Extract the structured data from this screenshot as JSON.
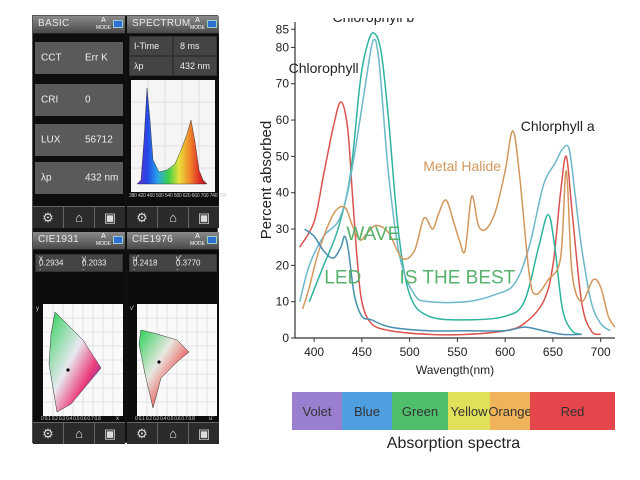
{
  "meter": {
    "basic": {
      "title": "BASIC",
      "mode": "A",
      "mode_sub": "MODE",
      "rows": [
        {
          "label": "CCT",
          "value": "Err K"
        },
        {
          "label": "CRI",
          "value": "0"
        },
        {
          "label": "LUX",
          "value": "56712"
        },
        {
          "label": "λp",
          "value": "432 nm"
        }
      ]
    },
    "spectrum": {
      "title": "SPECTRUM",
      "mode": "A",
      "mode_sub": "MODE",
      "itime_label": "I-Time",
      "itime_value": "8 ms",
      "lp_label": "λp",
      "lp_value": "432 nm",
      "ticks": [
        "380",
        "420",
        "460",
        "500",
        "540",
        "580",
        "620",
        "660",
        "700",
        "740",
        "780"
      ]
    },
    "cie1931": {
      "title": "CIE1931",
      "mode": "A",
      "mode_sub": "MODE",
      "x_label": "x :",
      "x_value": "0.2934",
      "y_label": "y :",
      "y_value": "0.2033",
      "axis_y": "y",
      "axis_x": "x",
      "ticks": "0 0.1 0.2 0.3 0.4 0.5 0.6 0.7 0.8"
    },
    "cie1976": {
      "title": "CIE1976",
      "mode": "A",
      "mode_sub": "MODE",
      "u_label": "u' :",
      "u_value": "0.2418",
      "v_label": "v' :",
      "v_value": "0.3770",
      "axis_y": "v'",
      "axis_x": "u'",
      "ticks": "0 0.1 0.2 0.3 0.4 0.5 0.6 0.7 0.8"
    },
    "icons": [
      "gear-icon",
      "home-icon",
      "save-icon"
    ]
  },
  "chart_data": {
    "type": "line",
    "ylabel": "Percent absorbed",
    "xlabel": "Wavength(nm)",
    "xlim": [
      380,
      715
    ],
    "ylim": [
      0,
      87
    ],
    "xticks": [
      400,
      450,
      500,
      550,
      600,
      650,
      700
    ],
    "yticks": [
      0,
      10,
      20,
      30,
      40,
      50,
      60,
      70,
      80,
      85
    ],
    "grid": false,
    "series": [
      {
        "name": "Chlorophyll",
        "color": "#d9534f",
        "points": [
          [
            385,
            25
          ],
          [
            400,
            32
          ],
          [
            410,
            45
          ],
          [
            420,
            58
          ],
          [
            428,
            65
          ],
          [
            435,
            58
          ],
          [
            440,
            40
          ],
          [
            445,
            22
          ],
          [
            450,
            10
          ],
          [
            460,
            4
          ],
          [
            480,
            2
          ],
          [
            520,
            1
          ],
          [
            560,
            1
          ],
          [
            600,
            2
          ],
          [
            620,
            4
          ],
          [
            640,
            10
          ],
          [
            650,
            20
          ],
          [
            658,
            40
          ],
          [
            664,
            50
          ],
          [
            670,
            35
          ],
          [
            680,
            10
          ],
          [
            690,
            2
          ],
          [
            700,
            1
          ]
        ]
      },
      {
        "name": "Chlorophyll b",
        "color": "#2fb39f",
        "points": [
          [
            395,
            10
          ],
          [
            410,
            20
          ],
          [
            425,
            30
          ],
          [
            438,
            45
          ],
          [
            448,
            70
          ],
          [
            455,
            80
          ],
          [
            462,
            84
          ],
          [
            470,
            79
          ],
          [
            478,
            60
          ],
          [
            488,
            30
          ],
          [
            500,
            12
          ],
          [
            520,
            6
          ],
          [
            560,
            5
          ],
          [
            600,
            6
          ],
          [
            620,
            10
          ],
          [
            635,
            25
          ],
          [
            645,
            34
          ],
          [
            652,
            25
          ],
          [
            660,
            8
          ],
          [
            670,
            2
          ],
          [
            680,
            1
          ]
        ]
      },
      {
        "name": "Chlorophyll a",
        "color": "#6db7c9",
        "points": [
          [
            385,
            10
          ],
          [
            395,
            20
          ],
          [
            410,
            28
          ],
          [
            425,
            32
          ],
          [
            435,
            40
          ],
          [
            445,
            55
          ],
          [
            455,
            72
          ],
          [
            462,
            82
          ],
          [
            468,
            76
          ],
          [
            478,
            45
          ],
          [
            490,
            22
          ],
          [
            505,
            12
          ],
          [
            520,
            10
          ],
          [
            560,
            10
          ],
          [
            590,
            12
          ],
          [
            610,
            15
          ],
          [
            625,
            25
          ],
          [
            640,
            42
          ],
          [
            652,
            48
          ],
          [
            660,
            52
          ],
          [
            667,
            52
          ],
          [
            673,
            40
          ],
          [
            680,
            25
          ],
          [
            690,
            10
          ],
          [
            700,
            4
          ],
          [
            710,
            2
          ]
        ]
      },
      {
        "name": "Metal Halide",
        "color": "#d2975c",
        "points": [
          [
            388,
            8
          ],
          [
            395,
            14
          ],
          [
            405,
            24
          ],
          [
            420,
            34
          ],
          [
            432,
            36
          ],
          [
            440,
            31
          ],
          [
            448,
            27
          ],
          [
            456,
            29
          ],
          [
            465,
            31
          ],
          [
            478,
            29
          ],
          [
            492,
            22
          ],
          [
            505,
            24
          ],
          [
            515,
            33
          ],
          [
            524,
            30
          ],
          [
            530,
            34
          ],
          [
            538,
            38
          ],
          [
            546,
            32
          ],
          [
            552,
            27
          ],
          [
            558,
            24
          ],
          [
            565,
            39
          ],
          [
            572,
            31
          ],
          [
            580,
            30
          ],
          [
            590,
            35
          ],
          [
            600,
            46
          ],
          [
            608,
            57
          ],
          [
            615,
            45
          ],
          [
            625,
            18
          ],
          [
            632,
            12
          ],
          [
            645,
            16
          ],
          [
            658,
            22
          ],
          [
            664,
            46
          ],
          [
            670,
            18
          ],
          [
            680,
            10
          ],
          [
            692,
            16
          ],
          [
            700,
            14
          ],
          [
            708,
            6
          ],
          [
            715,
            3
          ]
        ]
      },
      {
        "name": "LED",
        "color": "#4a8fb0",
        "points": [
          [
            390,
            30
          ],
          [
            400,
            28
          ],
          [
            410,
            24
          ],
          [
            420,
            22
          ],
          [
            428,
            25
          ],
          [
            432,
            28
          ],
          [
            436,
            24
          ],
          [
            442,
            12
          ],
          [
            450,
            6
          ],
          [
            460,
            5
          ],
          [
            480,
            3
          ],
          [
            520,
            2
          ],
          [
            560,
            2
          ],
          [
            600,
            2
          ],
          [
            620,
            3
          ],
          [
            640,
            2
          ],
          [
            660,
            1
          ],
          [
            680,
            1
          ]
        ]
      }
    ],
    "curve_labels": [
      {
        "text": "Chlorophyll b",
        "x": 462,
        "y": 87,
        "color": "#222"
      },
      {
        "text": "Chlorophyll",
        "x": 410,
        "y": 73,
        "color": "#222"
      },
      {
        "text": "Chlorphyll  a",
        "x": 655,
        "y": 57,
        "color": "#222"
      },
      {
        "text": "Metal Halide",
        "x": 555,
        "y": 46,
        "color": "#d2975c"
      }
    ],
    "annotations": [
      {
        "text": "WAVE",
        "x": 462,
        "y": 27,
        "color": "#56b26c"
      },
      {
        "text": "LED",
        "x": 430,
        "y": 15,
        "color": "#56b26c"
      },
      {
        "text": "IS THE BEST",
        "x": 550,
        "y": 15,
        "color": "#56b26c"
      }
    ],
    "color_bands": [
      {
        "label": "Volet",
        "color": "#9a7fd0"
      },
      {
        "label": "Blue",
        "color": "#4f9ee0"
      },
      {
        "label": "Green",
        "color": "#4fbf6b"
      },
      {
        "label": "Yellow",
        "color": "#e0e05a"
      },
      {
        "label": "Orange",
        "color": "#f0b35a"
      },
      {
        "label": "Red",
        "color": "#e5464b"
      }
    ],
    "caption": "Absorption spectra"
  }
}
